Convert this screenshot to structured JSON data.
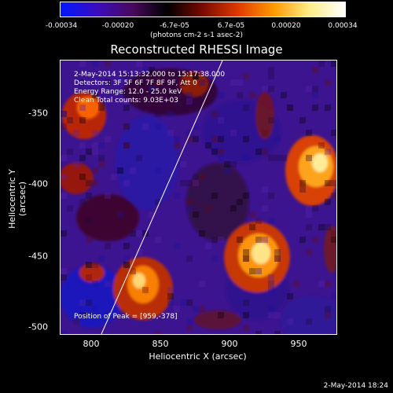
{
  "colorbar": {
    "ticks": [
      "-0.00034",
      "-0.00020",
      "-6.7e-05",
      "6.7e-05",
      "0.00020",
      "0.00034"
    ],
    "units": "(photons cm-2 s-1 asec-2)",
    "colors": [
      "#0018ff",
      "#3a0cc0",
      "#4a0a60",
      "#000000",
      "#7a0a00",
      "#e03a00",
      "#ff9a00",
      "#ffee88",
      "#ffffff"
    ]
  },
  "image": {
    "title": "Reconstructed RHESSI Image",
    "annotations": {
      "line1": "2-May-2014 15:13:32.000 to 15:17:38.000",
      "line2": "Detectors: 3F 5F 6F 7F 8F 9F, Att 0",
      "line3": "Energy Range: 12.0 - 25.0 keV",
      "line4": "Clean     Total counts: 9.03E+03",
      "peak": "Position of Peak = [959,-378]"
    },
    "xlabel": "Heliocentric X (arcsec)",
    "ylabel": "Heliocentric Y (arcsec)",
    "xticks": [
      "800",
      "850",
      "900",
      "950"
    ],
    "yticks": [
      "-350",
      "-400",
      "-450",
      "-500"
    ],
    "timestamp": "2-May-2014 18:24"
  }
}
